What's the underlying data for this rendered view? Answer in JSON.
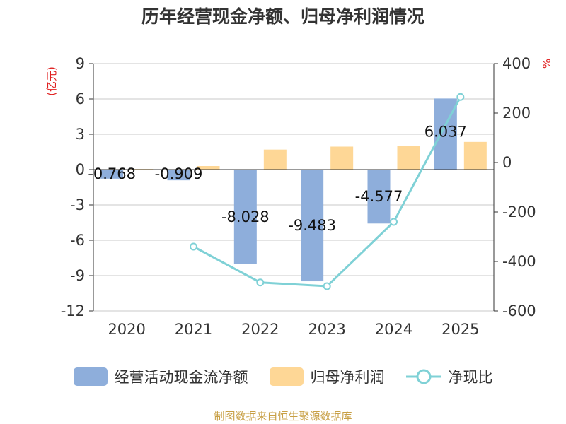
{
  "title": "历年经营现金净额、归母净利润情况",
  "source": "制图数据来自恒生聚源数据库",
  "colors": {
    "bar1": "#8eaedb",
    "bar2": "#fed796",
    "line": "#7fd1d6",
    "unit": "#e02020"
  },
  "legend": [
    {
      "label": "经营活动现金流净额",
      "type": "bar",
      "color": "#8eaedb"
    },
    {
      "label": "归母净利润",
      "type": "bar",
      "color": "#fed796"
    },
    {
      "label": "净现比",
      "type": "line",
      "color": "#7fd1d6"
    }
  ],
  "chart_data": {
    "type": "bar",
    "title": "历年经营现金净额、归母净利润情况",
    "categories": [
      "2020",
      "2021",
      "2022",
      "2023",
      "2024",
      "2025"
    ],
    "y_left": {
      "label": "(亿元)",
      "ticks": [
        "9",
        "6",
        "3",
        "0",
        "-3",
        "-6",
        "-9",
        "-12"
      ],
      "range": [
        -12,
        9
      ]
    },
    "y_right": {
      "label": "%",
      "ticks": [
        "400",
        "200",
        "0",
        "-200",
        "-400",
        "-600"
      ],
      "range": [
        -600,
        400
      ]
    },
    "series": [
      {
        "name": "经营活动现金流净额",
        "type": "bar",
        "axis": "left",
        "values": [
          -0.768,
          -0.909,
          -8.028,
          -9.483,
          -4.577,
          6.037
        ],
        "labels": [
          "-0.768",
          "-0.909",
          "-8.028",
          "-9.483",
          "-4.577",
          "6.037"
        ]
      },
      {
        "name": "归母净利润",
        "type": "bar",
        "axis": "left",
        "values": [
          0.05,
          0.3,
          1.7,
          1.95,
          2.0,
          2.35
        ]
      },
      {
        "name": "净现比",
        "type": "line",
        "axis": "right",
        "values": [
          null,
          -340,
          -485,
          -500,
          -240,
          265
        ]
      }
    ]
  }
}
